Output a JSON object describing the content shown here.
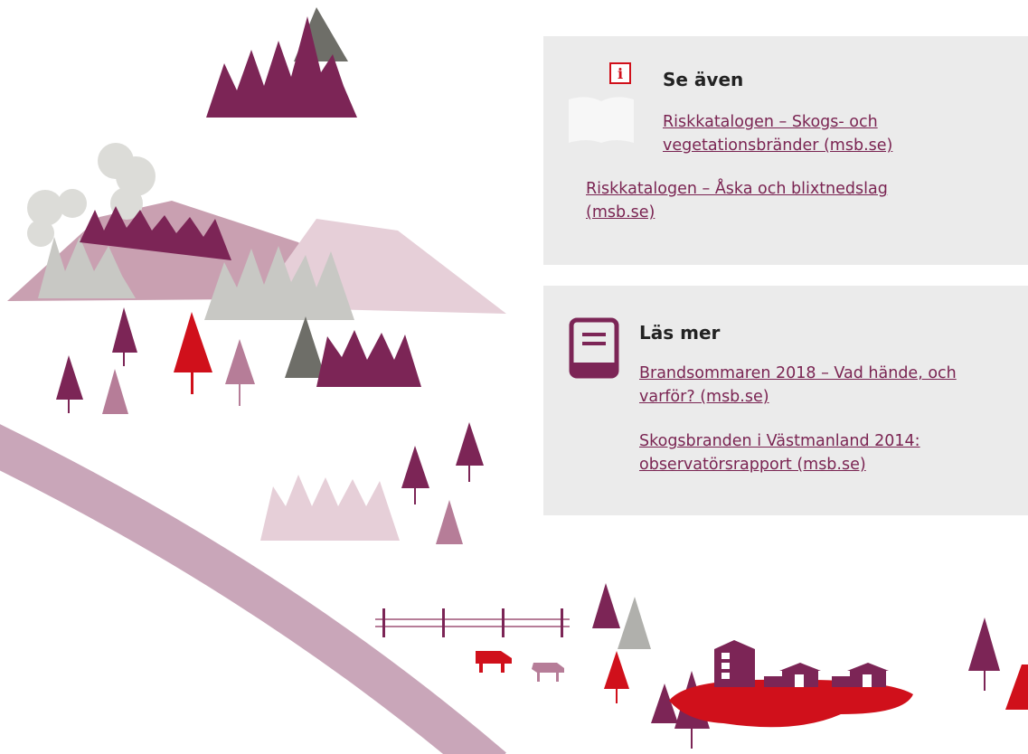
{
  "see_also": {
    "title": "Se även",
    "links": [
      "Riskkatalogen – Skogs- och vegetationsbränder (msb.se)",
      "Riskkatalogen – Åska och blixtnedslag (msb.se)"
    ]
  },
  "read_more": {
    "title": "Läs mer",
    "links": [
      "Brandsommaren 2018 – Vad hände, och varför? (msb.se)",
      "Skogsbranden i Västmanland 2014: observatörsrapport (msb.se)"
    ]
  }
}
